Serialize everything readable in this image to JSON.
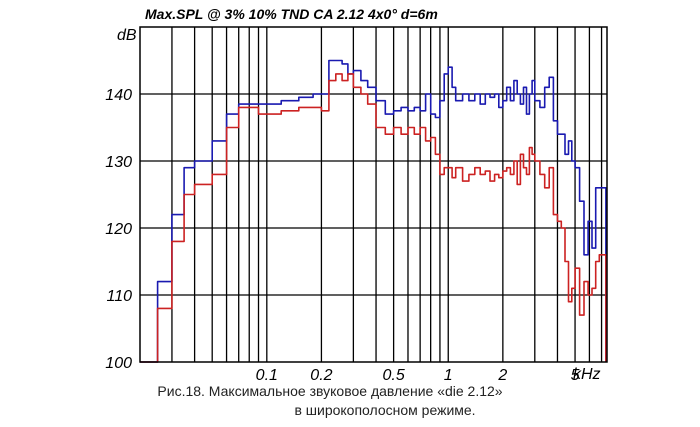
{
  "chart_data": {
    "type": "line",
    "title": "Max.SPL @ 3%   10%   TND   CA    2.12   4x0°   d=6m",
    "ylabel": "dB",
    "xlabel": "kHz",
    "x_scale": "log",
    "xlim": [
      0.02,
      7.5
    ],
    "ylim": [
      100,
      150
    ],
    "y_ticks": [
      100,
      110,
      120,
      130,
      140
    ],
    "x_tick_labels": [
      {
        "x": 0.1,
        "label": "0.1"
      },
      {
        "x": 0.2,
        "label": "0.2"
      },
      {
        "x": 0.5,
        "label": "0.5"
      },
      {
        "x": 1,
        "label": "1"
      },
      {
        "x": 2,
        "label": "2"
      },
      {
        "x": 5,
        "label": "5"
      }
    ],
    "grid": true,
    "series": [
      {
        "color": "#1a1ab0",
        "x": [
          0.02,
          0.025,
          0.03,
          0.035,
          0.04,
          0.05,
          0.06,
          0.07,
          0.08,
          0.09,
          0.1,
          0.12,
          0.15,
          0.18,
          0.2,
          0.22,
          0.24,
          0.26,
          0.28,
          0.3,
          0.33,
          0.36,
          0.4,
          0.45,
          0.5,
          0.55,
          0.6,
          0.65,
          0.7,
          0.75,
          0.8,
          0.85,
          0.9,
          0.95,
          1.0,
          1.05,
          1.1,
          1.2,
          1.3,
          1.4,
          1.5,
          1.6,
          1.7,
          1.8,
          1.9,
          2.0,
          2.1,
          2.2,
          2.3,
          2.4,
          2.5,
          2.6,
          2.7,
          2.8,
          2.9,
          3.0,
          3.2,
          3.4,
          3.6,
          3.8,
          4.0,
          4.2,
          4.4,
          4.6,
          4.8,
          5.0,
          5.3,
          5.6,
          5.9,
          6.2,
          6.5,
          6.8,
          7.1,
          7.4
        ],
        "y": [
          100,
          112,
          122,
          129,
          130,
          133,
          137,
          138.5,
          138.5,
          138.5,
          138.5,
          139,
          139.5,
          140,
          140,
          145,
          145,
          144.5,
          143,
          143.5,
          142,
          141,
          139,
          137,
          137.5,
          138,
          137.5,
          138,
          137.5,
          140,
          137,
          136.5,
          139,
          143,
          144,
          141,
          139,
          140,
          139,
          140,
          138.5,
          140,
          139.5,
          140,
          138,
          139,
          141,
          139,
          142,
          140,
          138.5,
          141,
          137,
          140,
          142,
          139,
          138,
          141,
          142.5,
          136,
          134,
          134,
          131,
          133,
          130,
          129,
          124,
          116,
          121,
          117,
          126,
          126,
          126,
          100
        ]
      },
      {
        "color": "#cc2222",
        "x": [
          0.02,
          0.025,
          0.03,
          0.035,
          0.04,
          0.05,
          0.06,
          0.07,
          0.08,
          0.09,
          0.1,
          0.12,
          0.15,
          0.18,
          0.2,
          0.22,
          0.24,
          0.26,
          0.28,
          0.3,
          0.33,
          0.36,
          0.4,
          0.45,
          0.5,
          0.55,
          0.6,
          0.65,
          0.7,
          0.75,
          0.8,
          0.85,
          0.9,
          0.95,
          1.0,
          1.05,
          1.1,
          1.2,
          1.3,
          1.4,
          1.5,
          1.6,
          1.7,
          1.8,
          1.9,
          2.0,
          2.1,
          2.2,
          2.3,
          2.4,
          2.5,
          2.6,
          2.7,
          2.8,
          2.9,
          3.0,
          3.2,
          3.4,
          3.6,
          3.8,
          4.0,
          4.2,
          4.4,
          4.6,
          4.8,
          5.0,
          5.3,
          5.6,
          5.9,
          6.2,
          6.5,
          6.8,
          7.1,
          7.4
        ],
        "y": [
          100,
          108,
          118,
          125,
          126.5,
          128,
          135,
          138,
          138,
          137,
          137,
          137.5,
          138,
          138,
          137.5,
          142,
          143,
          142,
          143,
          141,
          140,
          138.5,
          135,
          134,
          135,
          134,
          135,
          134,
          135,
          133,
          133.5,
          131,
          128,
          129,
          129,
          127.5,
          129,
          127,
          128,
          129,
          128,
          128.5,
          127,
          128,
          127.5,
          128.5,
          129,
          128,
          130,
          126.5,
          131,
          129,
          128,
          132,
          131,
          130,
          128,
          126,
          129,
          122,
          121,
          120,
          115,
          109,
          111,
          114,
          107,
          112,
          110,
          111,
          115,
          116,
          116,
          100
        ]
      }
    ]
  },
  "caption": {
    "line1": "Рис.18. Максимальное звуковое давление «die 2.12»",
    "line2": "в широкополосном режиме."
  }
}
